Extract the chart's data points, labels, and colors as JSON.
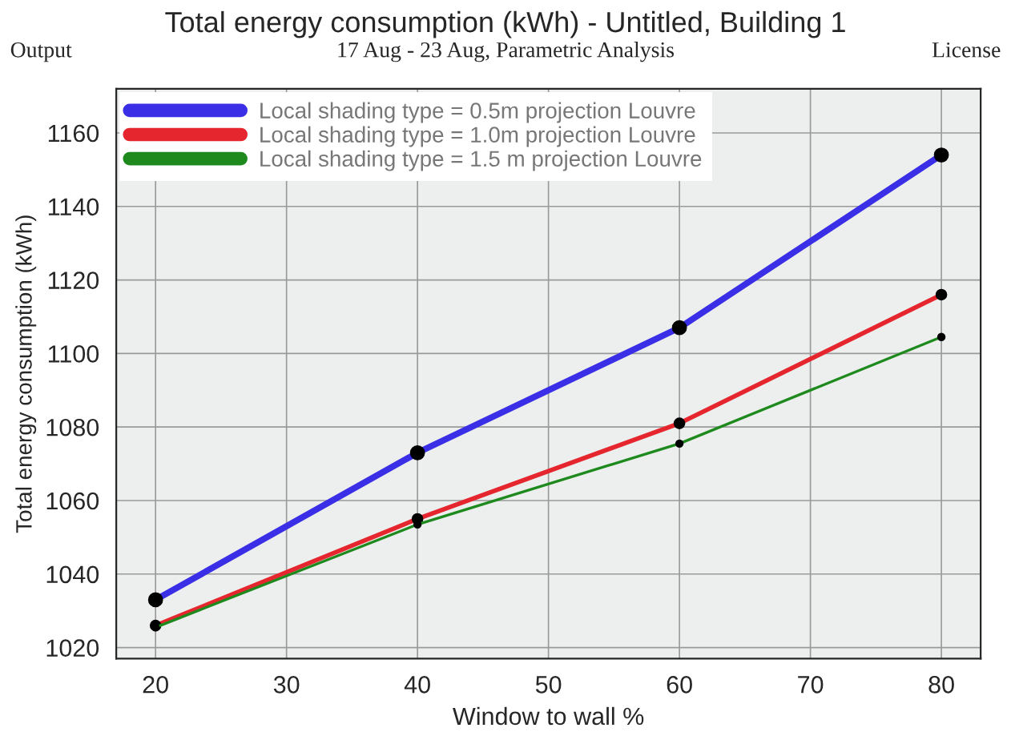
{
  "chart_data": {
    "type": "line",
    "title": "Total energy consumption (kWh) - Untitled, Building 1",
    "annotations": [
      "Output",
      "17 Aug - 23 Aug, Parametric Analysis",
      "License"
    ],
    "xlabel": "Window to wall %",
    "ylabel": "Total energy consumption (kWh)",
    "x": [
      20,
      40,
      60,
      80
    ],
    "series": [
      {
        "name": "Local shading type = 0.5m projection Louvre",
        "color": "#3a2ee6",
        "values": [
          1033,
          1073,
          1107,
          1154
        ]
      },
      {
        "name": "Local shading type = 1.0m projection Louvre",
        "color": "#e6262e",
        "values": [
          1026,
          1055,
          1081,
          1116
        ]
      },
      {
        "name": "Local shading type = 1.5 m projection Louvre",
        "color": "#1e8a1e",
        "values": [
          1025.5,
          1053.5,
          1075.5,
          1104.5
        ]
      }
    ],
    "xlim": [
      17,
      83
    ],
    "xticks": [
      20,
      30,
      40,
      50,
      60,
      70,
      80
    ],
    "ylim": [
      1017,
      1172
    ],
    "yticks": [
      1020,
      1040,
      1060,
      1080,
      1100,
      1120,
      1140,
      1160
    ],
    "grid": true,
    "legend": "top left",
    "marker": "circle",
    "line_style": "solid"
  }
}
